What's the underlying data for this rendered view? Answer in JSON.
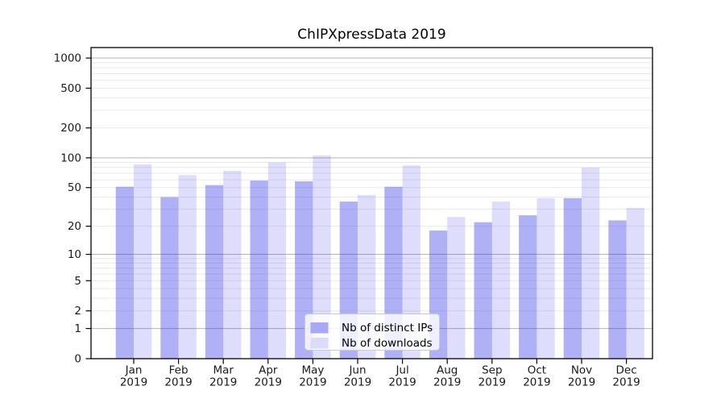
{
  "page": {
    "background": "#ffffff"
  },
  "chart_data": {
    "type": "bar",
    "title": "ChIPXpressData 2019",
    "xlabel": "",
    "ylabel": "",
    "categories": [
      "Jan",
      "Feb",
      "Mar",
      "Apr",
      "May",
      "Jun",
      "Jul",
      "Aug",
      "Sep",
      "Oct",
      "Nov",
      "Dec"
    ],
    "category_year": "2019",
    "series": [
      {
        "name": "Nb of distinct IPs",
        "color": "rgba(47,47,234,0.38)",
        "swatch": "#a8a8f6",
        "values": [
          51,
          40,
          53,
          59,
          58,
          36,
          51,
          18,
          22,
          26,
          39,
          23
        ]
      },
      {
        "name": "Nb of downloads",
        "color": "rgba(47,47,234,0.16)",
        "swatch": "#dbdbfa",
        "values": [
          86,
          67,
          74,
          90,
          106,
          42,
          84,
          25,
          36,
          39,
          80,
          31
        ]
      }
    ],
    "yscale": "log1p",
    "yticks": [
      0,
      1,
      2,
      5,
      10,
      20,
      50,
      100,
      200,
      500,
      1000
    ],
    "major_gridlines": [
      1,
      10,
      100,
      1000
    ],
    "minor_gridline_decades": [
      1,
      10,
      100
    ],
    "ylim": [
      0,
      1275
    ],
    "grid": true,
    "legend_position": "lower center",
    "colors": {
      "major_grid": "#b4b4b4",
      "minor_grid": "#e9e9e9",
      "spine": "#000000",
      "tick_text": "#1a1a1a",
      "legend_border": "#cbcbcb",
      "legend_bg": "rgba(255,255,255,0.8)"
    }
  }
}
